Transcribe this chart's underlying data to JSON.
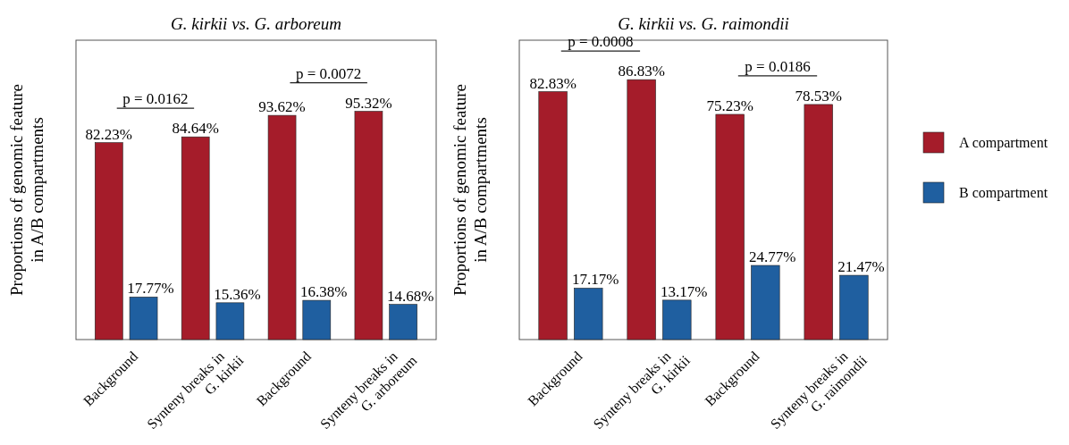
{
  "chart_data": [
    {
      "type": "bar",
      "title": "G. kirkii vs. G. arboreum",
      "ylabel": "Proportions of genomic feature in A/B compartments",
      "categories": [
        "Background",
        "Synteny breaks in G. kirkii",
        "Background",
        "Synteny breaks in G. arboreum"
      ],
      "series": [
        {
          "color": "#a51c2a",
          "values": [
            82.23,
            84.64,
            93.62,
            95.32
          ],
          "value_labels": [
            "82.23%",
            "84.64%",
            "93.62%",
            "95.32%"
          ]
        },
        {
          "color": "#1f5fa0",
          "values": [
            17.77,
            15.36,
            16.38,
            14.68
          ],
          "value_labels": [
            "17.77%",
            "15.36%",
            "16.38%",
            "14.68%"
          ]
        }
      ],
      "annotations": [
        "p = 0.0162",
        "p = 0.0072"
      ],
      "ylim": [
        0,
        125
      ],
      "tick_labels": "x",
      "legend": false
    },
    {
      "type": "bar",
      "title": "G. kirkii vs. G. raimondii",
      "ylabel": "Proportions of genomic feature in A/B compartments",
      "categories": [
        "Background",
        "Synteny breaks in G. kirkii",
        "Background",
        "Synteny breaks in G. raimondii"
      ],
      "series": [
        {
          "name": "A compartment",
          "color": "#a51c2a",
          "values": [
            82.83,
            86.83,
            75.23,
            78.53
          ],
          "value_labels": [
            "82.83%",
            "86.83%",
            "75.23%",
            "78.53%"
          ]
        },
        {
          "name": "B compartment",
          "color": "#1f5fa0",
          "values": [
            17.17,
            13.17,
            24.77,
            21.47
          ],
          "value_labels": [
            "17.17%",
            "13.17%",
            "24.77%",
            "21.47%"
          ]
        }
      ],
      "annotations": [
        "p = 0.0008",
        "p = 0.0186"
      ],
      "ylim": [
        0,
        100
      ],
      "tick_labels": "x",
      "legend": "right"
    }
  ]
}
